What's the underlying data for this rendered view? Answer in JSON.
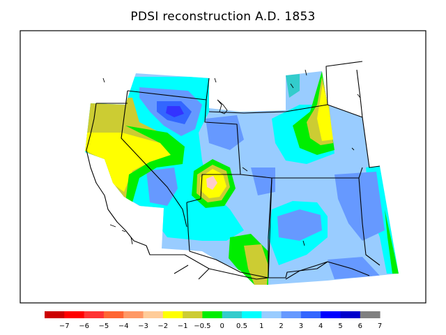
{
  "title": "PDSI reconstruction A.D. 1853",
  "legend": {
    "colors": [
      "#cc0000",
      "#ff0000",
      "#ff3333",
      "#ff6633",
      "#ff9966",
      "#ffcc99",
      "#ffff00",
      "#cccc33",
      "#00ee00",
      "#33cccc",
      "#00ffff",
      "#99ccff",
      "#6699ff",
      "#3366ff",
      "#0000ff",
      "#0000cc",
      "#808080"
    ],
    "labels": [
      "−7",
      "−6",
      "−5",
      "−4",
      "−3",
      "−2",
      "−1",
      "−0.5",
      "0",
      "0.5",
      "1",
      "2",
      "3",
      "4",
      "5",
      "6",
      "7"
    ]
  },
  "palette": {
    "gray": "#808080",
    "navy": "#0000cc",
    "blue": "#3333ff",
    "mid_blue": "#3366ff",
    "med_blue": "#6699ff",
    "light_blue": "#99ccff",
    "cyan": "#00ffff",
    "teal": "#33cccc",
    "green": "#00ee00",
    "olive": "#cccc33",
    "yellow": "#ffff00",
    "peach": "#ffcc99",
    "pink": "#ffcccc"
  }
}
